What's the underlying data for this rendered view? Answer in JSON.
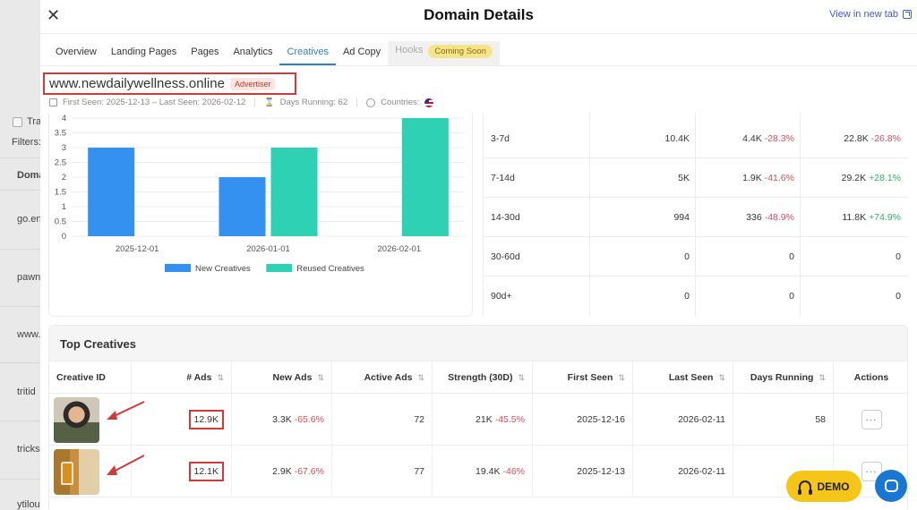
{
  "background": {
    "rows": [
      "Tra",
      "Filters:",
      "Doma",
      "go.en",
      "pawn",
      "www.",
      "tritid",
      "tricks",
      "ytilou"
    ]
  },
  "header": {
    "title": "Domain Details",
    "view_new_tab": "View in new tab",
    "close": "✕"
  },
  "tabs": [
    {
      "label": "Overview"
    },
    {
      "label": "Landing Pages"
    },
    {
      "label": "Pages"
    },
    {
      "label": "Analytics"
    },
    {
      "label": "Creatives",
      "active": true
    },
    {
      "label": "Ad Copy"
    },
    {
      "label": "Hooks",
      "disabled": true,
      "badge": "Coming Soon"
    }
  ],
  "domain": {
    "name": "www.newdailywellness.online",
    "badge": "Advertiser",
    "first_last_seen": "First Seen: 2025-12-13 – Last Seen: 2026-02-12",
    "days_running": "Days Running: 62",
    "countries": "Countries:"
  },
  "chart_data": {
    "type": "bar",
    "categories": [
      "2025-12-01",
      "2026-01-01",
      "2026-02-01"
    ],
    "series": [
      {
        "name": "New Creatives",
        "values": [
          3,
          2,
          0
        ],
        "color": "#3591f0"
      },
      {
        "name": "Reused Creatives",
        "values": [
          0,
          3,
          4
        ],
        "color": "#2fd1b5"
      }
    ],
    "yticks": [
      "0",
      "0.5",
      "1",
      "1.5",
      "2",
      "2.5",
      "3",
      "3.5",
      "4"
    ],
    "ylim": [
      0,
      4
    ],
    "legend": "bottom",
    "grid": true
  },
  "retention": {
    "rows": [
      {
        "label": "3-7d",
        "c1": "10.4K",
        "c2": "4.4K",
        "c2_change": "-28.3%",
        "c2_dir": "neg",
        "c3": "22.8K",
        "c3_change": "-26.8%",
        "c3_dir": "neg"
      },
      {
        "label": "7-14d",
        "c1": "5K",
        "c2": "1.9K",
        "c2_change": "-41.6%",
        "c2_dir": "neg",
        "c3": "29.2K",
        "c3_change": "+28.1%",
        "c3_dir": "pos"
      },
      {
        "label": "14-30d",
        "c1": "994",
        "c2": "336",
        "c2_change": "-48.9%",
        "c2_dir": "neg",
        "c3": "11.8K",
        "c3_change": "+74.9%",
        "c3_dir": "pos"
      },
      {
        "label": "30-60d",
        "c1": "0",
        "c2": "0",
        "c2_change": "",
        "c2_dir": "",
        "c3": "0",
        "c3_change": "",
        "c3_dir": ""
      },
      {
        "label": "90d+",
        "c1": "0",
        "c2": "0",
        "c2_change": "",
        "c2_dir": "",
        "c3": "0",
        "c3_change": "",
        "c3_dir": ""
      }
    ]
  },
  "top_creatives": {
    "title": "Top Creatives",
    "columns": [
      "Creative ID",
      "# Ads",
      "New Ads",
      "Active Ads",
      "Strength (30D)",
      "First Seen",
      "Last Seen",
      "Days Running",
      "Actions"
    ],
    "rows": [
      {
        "ads": "12.9K",
        "new_ads": "3.3K",
        "new_ads_change": "-65.6%",
        "active_ads": "72",
        "strength": "21K",
        "strength_change": "-45.5%",
        "first_seen": "2025-12-16",
        "last_seen": "2026-02-11",
        "days_running": "58",
        "actions": "···"
      },
      {
        "ads": "12.1K",
        "new_ads": "2.9K",
        "new_ads_change": "-67.6%",
        "active_ads": "77",
        "strength": "19.4K",
        "strength_change": "-46%",
        "first_seen": "2025-12-13",
        "last_seen": "2026-02-11",
        "days_running": "",
        "actions": "···"
      }
    ]
  },
  "floating": {
    "demo": "DEMO"
  },
  "colors": {
    "accent": "#2f80c7",
    "highlight": "#d23a3a",
    "negative": "#d64b5a",
    "positive": "#2fae6b"
  }
}
